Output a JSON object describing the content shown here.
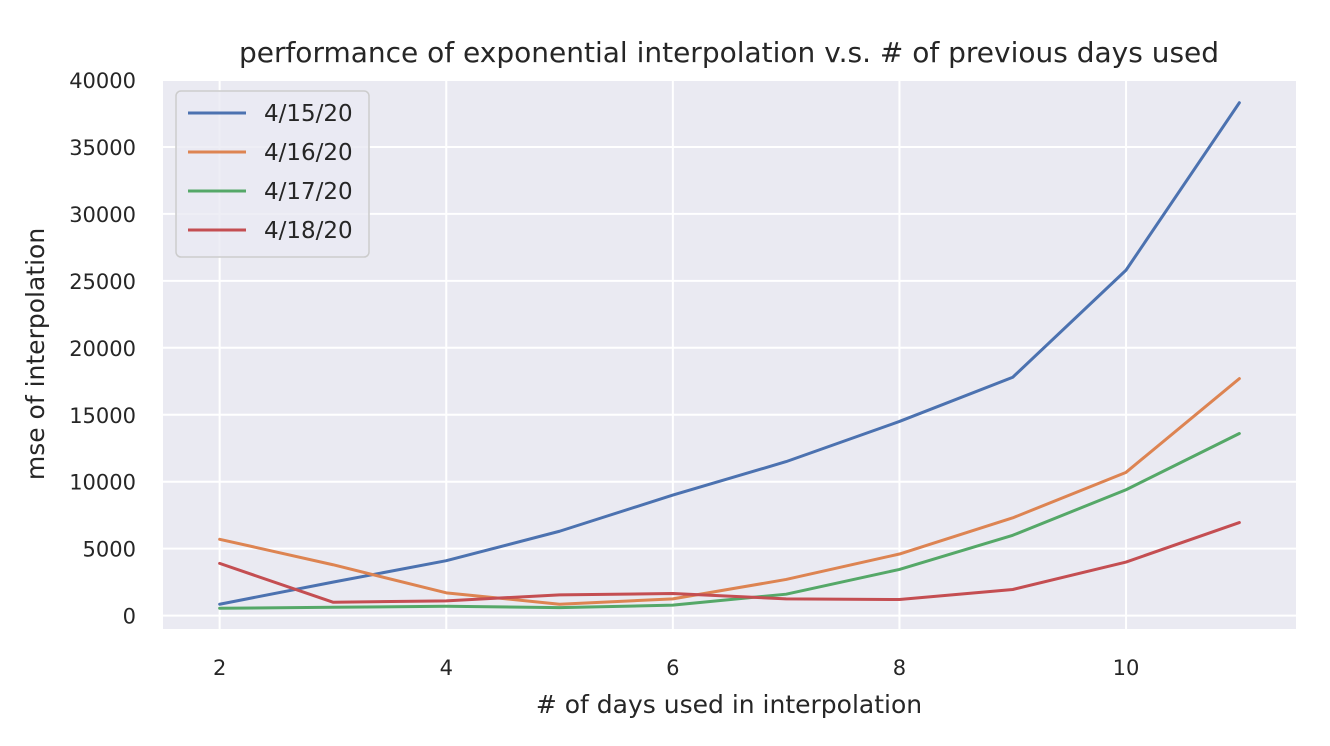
{
  "chart_data": {
    "type": "line",
    "title": "performance of exponential interpolation v.s. # of previous days used",
    "xlabel": "# of days used in interpolation",
    "ylabel": "mse of interpolation",
    "x": [
      2,
      3,
      4,
      5,
      6,
      7,
      8,
      9,
      10,
      11
    ],
    "xticks": [
      2,
      4,
      6,
      8,
      10
    ],
    "yticks": [
      0,
      5000,
      10000,
      15000,
      20000,
      25000,
      30000,
      35000,
      40000
    ],
    "xlim": [
      1.5,
      11.5
    ],
    "ylim": [
      -1000,
      40000
    ],
    "grid": true,
    "legend_position": "top-left",
    "background_color": "#eaeaf2",
    "series": [
      {
        "name": "4/15/20",
        "color": "#4c72b0",
        "values": [
          850,
          2500,
          4100,
          6300,
          9000,
          11500,
          14500,
          17800,
          25800,
          38300
        ]
      },
      {
        "name": "4/16/20",
        "color": "#dd8452",
        "values": [
          5700,
          3800,
          1700,
          850,
          1250,
          2700,
          4600,
          7300,
          10700,
          17700
        ]
      },
      {
        "name": "4/17/20",
        "color": "#55a868",
        "values": [
          550,
          620,
          700,
          600,
          780,
          1600,
          3450,
          6000,
          9400,
          13600
        ]
      },
      {
        "name": "4/18/20",
        "color": "#c44e52",
        "values": [
          3900,
          1000,
          1100,
          1550,
          1650,
          1250,
          1200,
          1950,
          4000,
          6950
        ]
      }
    ]
  }
}
